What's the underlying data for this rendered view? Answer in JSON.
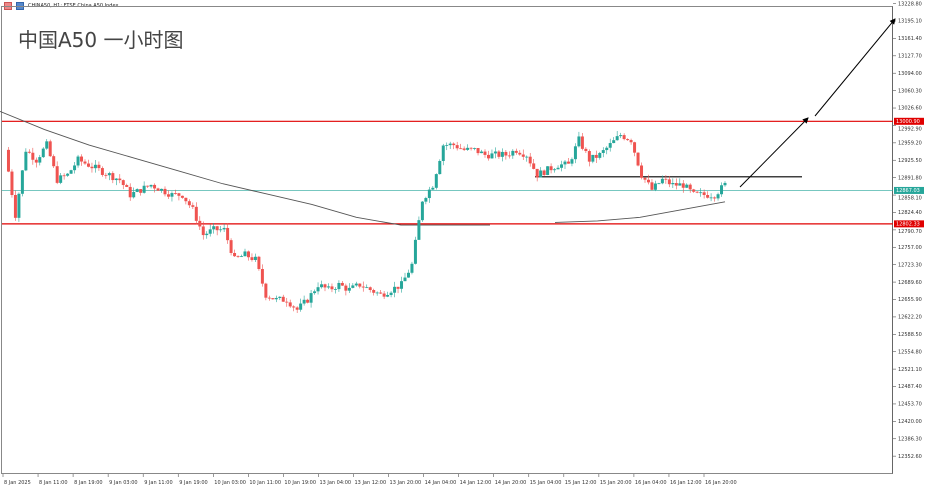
{
  "window": {
    "title": "CHINA50, H1:  FTSE China A50 Index"
  },
  "overlay_title": "中国A50 一小时图",
  "colors": {
    "bull": "#26a69a",
    "bear": "#ef5350",
    "resistance": "#e00000",
    "current": "#26a69a",
    "ma": "#555555"
  },
  "chart_data": {
    "type": "candlestick",
    "symbol": "CHINA50",
    "timeframe": "H1",
    "ylim": [
      12352.6,
      13228.8
    ],
    "y_ticks": [
      "13228.80",
      "13195.10",
      "13161.40",
      "13127.70",
      "13094.00",
      "13060.30",
      "13026.60",
      "12992.90",
      "12959.20",
      "12925.50",
      "12891.80",
      "12858.10",
      "12824.40",
      "12790.70",
      "12757.00",
      "12723.30",
      "12689.60",
      "12655.90",
      "12622.20",
      "12588.50",
      "12554.80",
      "12521.10",
      "12487.40",
      "12453.70",
      "12420.00",
      "12386.30",
      "12352.60"
    ],
    "x_ticks": [
      "8 Jan 2025",
      "8 Jan 11:00",
      "8 Jan 19:00",
      "9 Jan 03:00",
      "9 Jan 11:00",
      "9 Jan 19:00",
      "10 Jan 03:00",
      "10 Jan 11:00",
      "10 Jan 19:00",
      "13 Jan 04:00",
      "13 Jan 12:00",
      "13 Jan 20:00",
      "14 Jan 04:00",
      "14 Jan 12:00",
      "14 Jan 20:00",
      "15 Jan 04:00",
      "15 Jan 12:00",
      "15 Jan 20:00",
      "16 Jan 04:00",
      "16 Jan 12:00",
      "16 Jan 20:00"
    ],
    "closes": [
      12945.6,
      12819.9,
      12945.6,
      12926.3,
      12955.3,
      12887.6,
      12897.3,
      12926.3,
      12916.6,
      12906.9,
      12897.3,
      12887.6,
      12858.6,
      12868.3,
      12877.9,
      12868.3,
      12858.6,
      12858.6,
      12829.6,
      12781.2,
      12790.9,
      12790.9,
      12732.9,
      12742.5,
      12732.9,
      12665.2,
      12655.5,
      12655.5,
      12636.2,
      12655.5,
      12684.5,
      12674.8,
      12684.5,
      12674.8,
      12684.5,
      12674.8,
      12665.2,
      12674.8,
      12684.5,
      12723.2,
      12848.9,
      12877.9,
      12955.3,
      12955.3,
      12945.6,
      12945.6,
      12935.9,
      12935.9,
      12935.9,
      12945.6,
      12935.9,
      12897.3,
      12906.9,
      12916.6,
      12916.6,
      12965.0,
      12926.3,
      12935.9,
      12955.3,
      12974.6,
      12965.0,
      12897.3,
      12868.3,
      12887.6,
      12877.9,
      12877.9,
      12858.6,
      12858.6,
      12858.6,
      12877.9
    ],
    "ma_series": [
      13020,
      12985,
      12955,
      12930,
      12905,
      12880,
      12860,
      12840,
      12815,
      12800,
      12800,
      12800
    ],
    "ma_series_2": [
      12805,
      12808,
      12815,
      12830,
      12845
    ],
    "levels": [
      {
        "name": "resistance",
        "price": 13000.9,
        "label": "13000.90"
      },
      {
        "name": "support",
        "price": 12802.33,
        "label": "12802.33"
      },
      {
        "name": "neckline",
        "price": 12893.4
      },
      {
        "name": "current",
        "price": 12867.03,
        "label": "12867.03"
      }
    ]
  }
}
